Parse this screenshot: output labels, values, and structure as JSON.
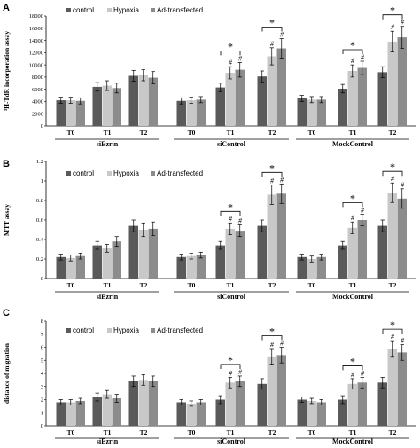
{
  "colors": {
    "control": "#5a5a5a",
    "hypoxia": "#c8c8c8",
    "ad": "#8c8c8c",
    "axis": "#000000"
  },
  "legend": [
    "control",
    "Hypoxia",
    "Ad-transfected"
  ],
  "chart_data": [
    {
      "type": "bar",
      "panel": "A",
      "ylabel": "³H-TdR incorporation assay",
      "ylim": [
        0,
        18000
      ],
      "yticks": [
        0,
        2000,
        4000,
        6000,
        8000,
        10000,
        12000,
        14000,
        16000,
        18000
      ],
      "yticklabels": [
        "0",
        "2000",
        "4000",
        "6000",
        "8000",
        "10000",
        "12000",
        "14000",
        "16000",
        "18000"
      ],
      "categories": [
        "T0",
        "T1",
        "T2",
        "T0",
        "T1",
        "T2",
        "T0",
        "T1",
        "T2"
      ],
      "groups": [
        "siEzrin",
        "siControl",
        "MockControl"
      ],
      "series": [
        {
          "name": "control",
          "values": [
            4200,
            6400,
            8200,
            4100,
            6300,
            8100,
            4500,
            6100,
            8800
          ],
          "errors": [
            500,
            700,
            900,
            500,
            700,
            900,
            500,
            700,
            900
          ]
        },
        {
          "name": "Hypoxia",
          "values": [
            4200,
            6600,
            8300,
            4200,
            8700,
            11400,
            4300,
            9000,
            13800
          ],
          "errors": [
            500,
            800,
            900,
            500,
            1000,
            1400,
            500,
            1000,
            1700
          ]
        },
        {
          "name": "Ad-transfected",
          "values": [
            4100,
            6200,
            7900,
            4300,
            9200,
            12700,
            4300,
            9500,
            14500
          ],
          "errors": [
            500,
            800,
            1000,
            500,
            1200,
            1600,
            500,
            1100,
            1800
          ]
        }
      ],
      "hash_marks": [
        [],
        [],
        [],
        [],
        [
          "#",
          "#"
        ],
        [
          "#",
          "#"
        ],
        [],
        [
          "#",
          "#"
        ],
        [
          "#",
          "#"
        ]
      ],
      "stars": [
        false,
        false,
        false,
        false,
        true,
        true,
        false,
        true,
        true
      ]
    },
    {
      "type": "bar",
      "panel": "B",
      "ylabel": "MTT assay",
      "ylim": [
        0,
        1.2
      ],
      "yticks": [
        0,
        0.2,
        0.4,
        0.6,
        0.8,
        1.0,
        1.2
      ],
      "yticklabels": [
        "0",
        "0.2",
        "0.4",
        "0.6",
        "0.8",
        "1",
        "1.2"
      ],
      "categories": [
        "T0",
        "T1",
        "T2",
        "T0",
        "T1",
        "T2",
        "T0",
        "T1",
        "T2"
      ],
      "groups": [
        "siEzrin",
        "siControl",
        "MockControl"
      ],
      "series": [
        {
          "name": "control",
          "values": [
            0.22,
            0.34,
            0.54,
            0.22,
            0.34,
            0.54,
            0.22,
            0.34,
            0.54
          ],
          "errors": [
            0.03,
            0.04,
            0.06,
            0.03,
            0.04,
            0.06,
            0.03,
            0.04,
            0.06
          ]
        },
        {
          "name": "Hypoxia",
          "values": [
            0.21,
            0.31,
            0.5,
            0.23,
            0.51,
            0.86,
            0.2,
            0.52,
            0.88
          ],
          "errors": [
            0.03,
            0.04,
            0.07,
            0.03,
            0.06,
            0.1,
            0.03,
            0.06,
            0.1
          ]
        },
        {
          "name": "Ad-transfected",
          "values": [
            0.23,
            0.38,
            0.51,
            0.24,
            0.49,
            0.87,
            0.22,
            0.6,
            0.82
          ],
          "errors": [
            0.03,
            0.05,
            0.07,
            0.03,
            0.06,
            0.1,
            0.03,
            0.06,
            0.1
          ]
        }
      ],
      "hash_marks": [
        [],
        [],
        [],
        [],
        [
          "#",
          "#"
        ],
        [
          "#",
          "#"
        ],
        [],
        [
          "#",
          "#"
        ],
        [
          "#",
          "#"
        ]
      ],
      "stars": [
        false,
        false,
        false,
        false,
        true,
        true,
        false,
        true,
        true
      ]
    },
    {
      "type": "bar",
      "panel": "C",
      "ylabel": "distance of migration",
      "ylim": [
        0,
        8
      ],
      "yticks": [
        0,
        1,
        2,
        3,
        4,
        5,
        6,
        7,
        8
      ],
      "yticklabels": [
        "0",
        "1",
        "2",
        "3",
        "4",
        "5",
        "6",
        "7",
        "8"
      ],
      "categories": [
        "T0",
        "T1",
        "T2",
        "T0",
        "T1",
        "T2",
        "T0",
        "T1",
        "T2"
      ],
      "groups": [
        "siEzrin",
        "siControl",
        "MockControl"
      ],
      "series": [
        {
          "name": "control",
          "values": [
            1.8,
            2.2,
            3.4,
            1.8,
            2.0,
            3.2,
            2.0,
            2.0,
            3.3
          ],
          "errors": [
            0.2,
            0.3,
            0.4,
            0.2,
            0.3,
            0.4,
            0.2,
            0.3,
            0.4
          ]
        },
        {
          "name": "Hypoxia",
          "values": [
            1.8,
            2.4,
            3.5,
            1.7,
            3.3,
            5.3,
            1.9,
            3.2,
            5.9
          ],
          "errors": [
            0.2,
            0.3,
            0.4,
            0.2,
            0.4,
            0.6,
            0.2,
            0.4,
            0.6
          ]
        },
        {
          "name": "Ad-transfected",
          "values": [
            1.9,
            2.1,
            3.4,
            1.8,
            3.4,
            5.4,
            1.8,
            3.3,
            5.6
          ],
          "errors": [
            0.2,
            0.3,
            0.4,
            0.2,
            0.4,
            0.6,
            0.2,
            0.4,
            0.6
          ]
        }
      ],
      "hash_marks": [
        [],
        [],
        [],
        [],
        [
          "#",
          "#"
        ],
        [
          "#",
          "#"
        ],
        [],
        [
          "#",
          "#"
        ],
        [
          "#",
          "#"
        ]
      ],
      "stars": [
        false,
        false,
        false,
        false,
        true,
        true,
        false,
        true,
        true
      ]
    }
  ]
}
